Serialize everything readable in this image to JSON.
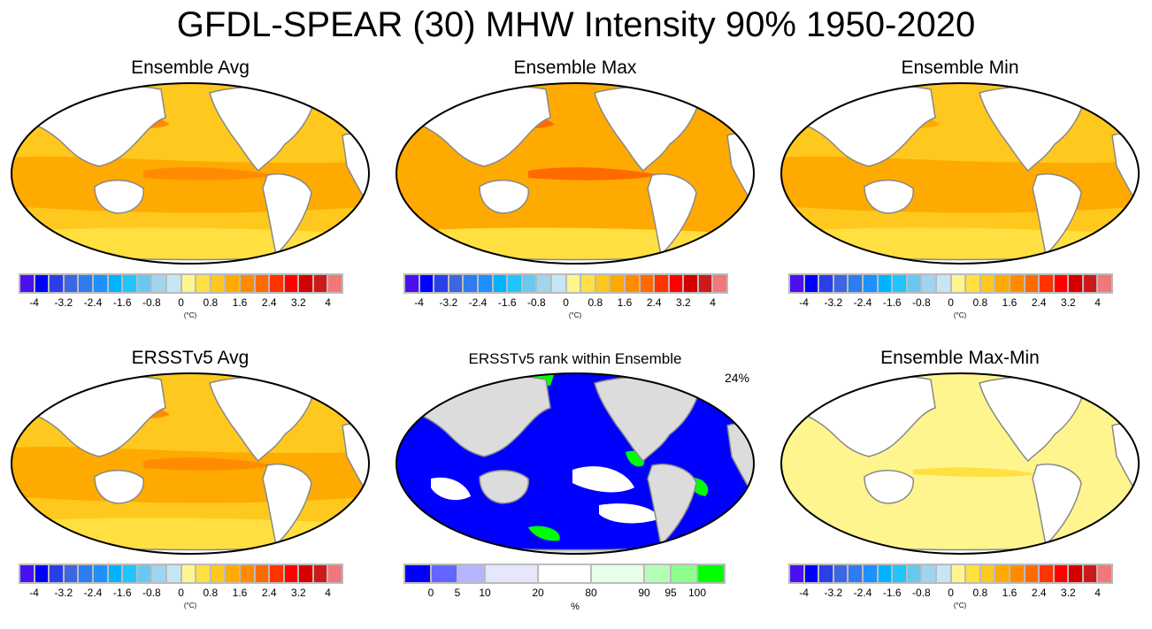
{
  "title": "GFDL-SPEAR (30) MHW Intensity 90% 1950-2020",
  "temp_colorbar": {
    "levels": [
      -4,
      -3.6,
      -3.2,
      -2.8,
      -2.4,
      -2.0,
      -1.6,
      -1.2,
      -0.8,
      -0.4,
      0,
      0.4,
      0.8,
      1.2,
      1.6,
      2.0,
      2.4,
      2.8,
      3.2,
      3.6,
      4
    ],
    "tick_labels": [
      "-4",
      "-3.2",
      "-2.4",
      "-1.6",
      "-0.8",
      "0",
      "0.8",
      "1.6",
      "2.4",
      "3.2",
      "4"
    ],
    "colors": [
      "#4b10f0",
      "#0000ff",
      "#2a3fe8",
      "#3d66e0",
      "#2d7cf0",
      "#1e90ff",
      "#00b2ff",
      "#20c4ff",
      "#6ac8f0",
      "#a0d4ef",
      "#c6e6f6",
      "#fff58e",
      "#ffe040",
      "#ffc81e",
      "#ffaa00",
      "#ff8c00",
      "#ff6a00",
      "#ff3300",
      "#ff0000",
      "#d40000",
      "#cc1a1a",
      "#f07878"
    ],
    "unit": "(°C)"
  },
  "rank_colorbar": {
    "tick_labels": [
      "0",
      "5",
      "10",
      "20",
      "80",
      "90",
      "95",
      "100"
    ],
    "colors": [
      "#0000ff",
      "#6464ff",
      "#b4b4ff",
      "#e6e6ff",
      "#ffffff",
      "#e6ffe6",
      "#b4ffb4",
      "#8cff8c",
      "#00ff00"
    ],
    "unit": "%"
  },
  "panels": [
    {
      "title": "Ensemble Avg",
      "style": "avg"
    },
    {
      "title": "Ensemble Max",
      "style": "max"
    },
    {
      "title": "Ensemble Min",
      "style": "min"
    },
    {
      "title": "ERSSTv5 Avg",
      "style": "ersst"
    },
    {
      "title": "ERSSTv5 rank within Ensemble",
      "style": "rank",
      "percent": "24%"
    },
    {
      "title": "Ensemble Max-Min",
      "style": "range"
    }
  ]
}
